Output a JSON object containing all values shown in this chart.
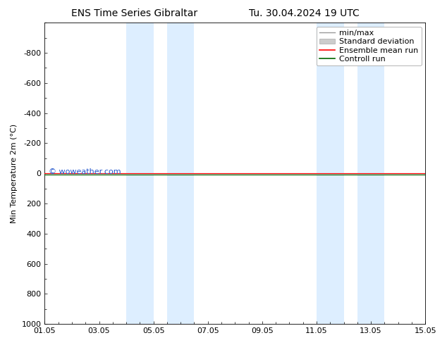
{
  "title_left": "ENS Time Series Gibraltar",
  "title_right": "Tu. 30.04.2024 19 UTC",
  "ylabel": "Min Temperature 2m (°C)",
  "xlim": [
    0,
    14
  ],
  "ylim_bottom": -1000,
  "ylim_top": 1000,
  "yticks": [
    -800,
    -600,
    -400,
    -200,
    0,
    200,
    400,
    600,
    800,
    1000
  ],
  "xtick_labels": [
    "01.05",
    "03.05",
    "05.05",
    "07.05",
    "09.05",
    "11.05",
    "13.05",
    "15.05"
  ],
  "xtick_positions": [
    0,
    2,
    4,
    6,
    8,
    10,
    12,
    14
  ],
  "shaded_bands": [
    [
      3.0,
      4.0
    ],
    [
      4.5,
      5.5
    ],
    [
      10.0,
      11.0
    ],
    [
      11.5,
      12.5
    ]
  ],
  "shade_color": "#ddeeff",
  "ensemble_mean_color": "#ff0000",
  "control_run_color": "#006600",
  "minmax_color": "#999999",
  "stddev_color": "#cccccc",
  "watermark": "© woweather.com",
  "watermark_color": "#2255cc",
  "legend_entries": [
    "min/max",
    "Standard deviation",
    "Ensemble mean run",
    "Controll run"
  ],
  "bg_color": "#ffffff",
  "plot_bg_color": "#ffffff",
  "title_fontsize": 10,
  "legend_fontsize": 8,
  "tick_fontsize": 8,
  "ylabel_fontsize": 8
}
